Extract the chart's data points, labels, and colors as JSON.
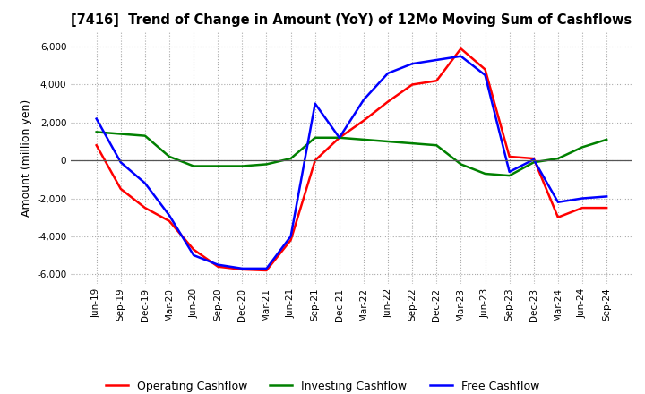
{
  "title": "[7416]  Trend of Change in Amount (YoY) of 12Mo Moving Sum of Cashflows",
  "ylabel": "Amount (million yen)",
  "ylim": [
    -6500,
    6800
  ],
  "yticks": [
    -6000,
    -4000,
    -2000,
    0,
    2000,
    4000,
    6000
  ],
  "background_color": "#ffffff",
  "grid_color": "#aaaaaa",
  "x_labels": [
    "Jun-19",
    "Sep-19",
    "Dec-19",
    "Mar-20",
    "Jun-20",
    "Sep-20",
    "Dec-20",
    "Mar-21",
    "Jun-21",
    "Sep-21",
    "Dec-21",
    "Mar-22",
    "Jun-22",
    "Sep-22",
    "Dec-22",
    "Mar-23",
    "Jun-23",
    "Sep-23",
    "Dec-23",
    "Mar-24",
    "Jun-24",
    "Sep-24"
  ],
  "operating": [
    800,
    -1500,
    -2500,
    -3200,
    -4700,
    -5600,
    -5750,
    -5800,
    -4200,
    0,
    1200,
    2100,
    3100,
    4000,
    4200,
    5900,
    4800,
    200,
    100,
    -3000,
    -2500,
    -2500
  ],
  "investing": [
    1500,
    1400,
    1300,
    200,
    -300,
    -300,
    -300,
    -200,
    100,
    1200,
    1200,
    1100,
    1000,
    900,
    800,
    -200,
    -700,
    -800,
    -100,
    100,
    700,
    1100
  ],
  "free": [
    2200,
    -100,
    -1200,
    -2900,
    -5000,
    -5500,
    -5700,
    -5700,
    -4000,
    3000,
    1200,
    3200,
    4600,
    5100,
    5300,
    5500,
    4500,
    -600,
    50,
    -2200,
    -2000,
    -1900
  ],
  "operating_color": "#ff0000",
  "investing_color": "#008000",
  "free_color": "#0000ff",
  "line_width": 1.8
}
